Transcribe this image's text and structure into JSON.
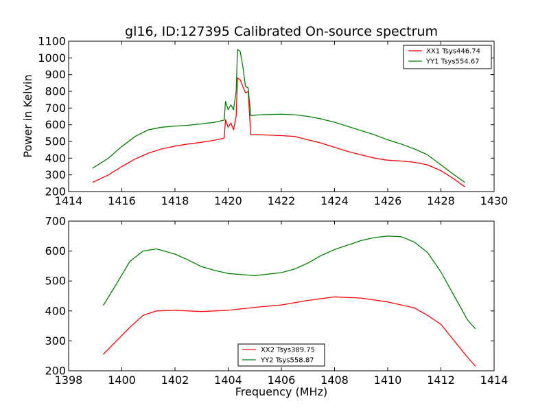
{
  "figure": {
    "title": "gl16, ID:127395 Calibrated On-source spectrum"
  },
  "colors": {
    "red": "#ff0000",
    "green": "#008000"
  },
  "chart_data": [
    {
      "type": "line",
      "title": "gl16, ID:127395 Calibrated On-source spectrum",
      "xlabel": "",
      "ylabel": "Power in Kelvin",
      "xlim": [
        1414,
        1430
      ],
      "ylim": [
        200,
        1100
      ],
      "xticks": [
        1414,
        1416,
        1418,
        1420,
        1422,
        1424,
        1426,
        1428,
        1430
      ],
      "yticks": [
        200,
        300,
        400,
        500,
        600,
        700,
        800,
        900,
        1000,
        1100
      ],
      "legend_position": "top-right",
      "grid": false,
      "series": [
        {
          "name": "XX1 Tsys446.74",
          "color": "#ff0000",
          "points": [
            [
              1414.9,
              255
            ],
            [
              1415.5,
              300
            ],
            [
              1416,
              350
            ],
            [
              1416.5,
              395
            ],
            [
              1417,
              430
            ],
            [
              1417.5,
              455
            ],
            [
              1418,
              472
            ],
            [
              1418.5,
              485
            ],
            [
              1419,
              495
            ],
            [
              1419.5,
              508
            ],
            [
              1419.85,
              520
            ],
            [
              1419.9,
              630
            ],
            [
              1420.0,
              585
            ],
            [
              1420.1,
              610
            ],
            [
              1420.2,
              570
            ],
            [
              1420.3,
              650
            ],
            [
              1420.35,
              880
            ],
            [
              1420.45,
              870
            ],
            [
              1420.55,
              830
            ],
            [
              1420.65,
              790
            ],
            [
              1420.75,
              800
            ],
            [
              1420.85,
              540
            ],
            [
              1421.2,
              540
            ],
            [
              1422,
              535
            ],
            [
              1422.5,
              530
            ],
            [
              1423,
              510
            ],
            [
              1423.5,
              490
            ],
            [
              1424,
              465
            ],
            [
              1424.5,
              440
            ],
            [
              1425,
              420
            ],
            [
              1425.5,
              400
            ],
            [
              1426,
              388
            ],
            [
              1426.5,
              383
            ],
            [
              1427,
              375
            ],
            [
              1427.5,
              360
            ],
            [
              1428,
              325
            ],
            [
              1428.5,
              275
            ],
            [
              1428.9,
              228
            ]
          ]
        },
        {
          "name": "YY1 Tsys554.67",
          "color": "#008000",
          "points": [
            [
              1414.9,
              340
            ],
            [
              1415.5,
              400
            ],
            [
              1416,
              470
            ],
            [
              1416.5,
              530
            ],
            [
              1417,
              570
            ],
            [
              1417.5,
              585
            ],
            [
              1418,
              592
            ],
            [
              1418.5,
              597
            ],
            [
              1419,
              605
            ],
            [
              1419.5,
              615
            ],
            [
              1419.85,
              628
            ],
            [
              1419.9,
              740
            ],
            [
              1420.0,
              690
            ],
            [
              1420.1,
              720
            ],
            [
              1420.2,
              690
            ],
            [
              1420.3,
              800
            ],
            [
              1420.35,
              1050
            ],
            [
              1420.45,
              1040
            ],
            [
              1420.55,
              950
            ],
            [
              1420.65,
              830
            ],
            [
              1420.75,
              820
            ],
            [
              1420.85,
              655
            ],
            [
              1421.2,
              660
            ],
            [
              1422,
              663
            ],
            [
              1422.5,
              660
            ],
            [
              1423,
              650
            ],
            [
              1423.5,
              635
            ],
            [
              1424,
              615
            ],
            [
              1424.5,
              590
            ],
            [
              1425,
              565
            ],
            [
              1425.5,
              540
            ],
            [
              1426,
              510
            ],
            [
              1426.5,
              485
            ],
            [
              1427,
              455
            ],
            [
              1427.5,
              420
            ],
            [
              1428,
              360
            ],
            [
              1428.5,
              300
            ],
            [
              1428.9,
              255
            ]
          ]
        }
      ]
    },
    {
      "type": "line",
      "title": "",
      "xlabel": "Frequency (MHz)",
      "ylabel": "",
      "xlim": [
        1398,
        1414
      ],
      "ylim": [
        200,
        700
      ],
      "xticks": [
        1398,
        1400,
        1402,
        1404,
        1406,
        1408,
        1410,
        1412,
        1414
      ],
      "yticks": [
        200,
        300,
        400,
        500,
        600,
        700
      ],
      "legend_position": "bottom-center",
      "grid": false,
      "series": [
        {
          "name": "XX2 Tsys389.75",
          "color": "#ff0000",
          "points": [
            [
              1399.3,
              255
            ],
            [
              1399.8,
              300
            ],
            [
              1400.3,
              345
            ],
            [
              1400.8,
              385
            ],
            [
              1401.3,
              400
            ],
            [
              1402,
              402
            ],
            [
              1403,
              398
            ],
            [
              1404,
              402
            ],
            [
              1405,
              412
            ],
            [
              1406,
              420
            ],
            [
              1407,
              435
            ],
            [
              1408,
              447
            ],
            [
              1409,
              443
            ],
            [
              1410,
              430
            ],
            [
              1411,
              410
            ],
            [
              1411.5,
              385
            ],
            [
              1412,
              355
            ],
            [
              1412.5,
              300
            ],
            [
              1413,
              245
            ],
            [
              1413.3,
              215
            ]
          ]
        },
        {
          "name": "YY2 Tsys558.87",
          "color": "#008000",
          "points": [
            [
              1399.3,
              418
            ],
            [
              1399.8,
              490
            ],
            [
              1400.3,
              565
            ],
            [
              1400.8,
              600
            ],
            [
              1401.3,
              607
            ],
            [
              1402,
              590
            ],
            [
              1402.5,
              570
            ],
            [
              1403,
              548
            ],
            [
              1403.5,
              535
            ],
            [
              1404,
              525
            ],
            [
              1405,
              518
            ],
            [
              1406,
              528
            ],
            [
              1406.5,
              540
            ],
            [
              1407,
              560
            ],
            [
              1407.5,
              585
            ],
            [
              1408,
              605
            ],
            [
              1408.5,
              620
            ],
            [
              1409,
              635
            ],
            [
              1409.5,
              645
            ],
            [
              1410,
              650
            ],
            [
              1410.5,
              648
            ],
            [
              1411,
              630
            ],
            [
              1411.5,
              595
            ],
            [
              1412,
              530
            ],
            [
              1412.5,
              450
            ],
            [
              1413,
              370
            ],
            [
              1413.3,
              340
            ]
          ]
        }
      ]
    }
  ]
}
